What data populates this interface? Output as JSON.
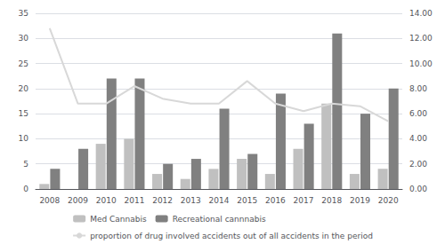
{
  "chart_data": {
    "type": "bar",
    "categories": [
      "2008",
      "2009",
      "2010",
      "2011",
      "2012",
      "2013",
      "2014",
      "2015",
      "2016",
      "2017",
      "2018",
      "2019",
      "2020"
    ],
    "series": [
      {
        "name": "Med Cannabis",
        "type": "bar",
        "color": "#c0c0c0",
        "values": [
          1,
          0,
          9,
          10,
          3,
          2,
          4,
          6,
          3,
          8,
          17,
          3,
          4
        ]
      },
      {
        "name": "Recreational cannnabis",
        "type": "bar",
        "color": "#808080",
        "values": [
          4,
          8,
          22,
          22,
          5,
          6,
          16,
          7,
          19,
          13,
          31,
          15,
          20
        ]
      },
      {
        "name": "proportion of drug involved accidents out of all accidents in the period",
        "type": "line",
        "axis": "y2",
        "color": "#d8d8d8",
        "values": [
          12.8,
          6.8,
          6.8,
          8.2,
          7.2,
          6.8,
          6.8,
          8.6,
          6.8,
          6.2,
          6.8,
          6.6,
          5.4
        ]
      }
    ],
    "ylim": [
      0,
      35
    ],
    "yticks": [
      0,
      5,
      10,
      15,
      20,
      25,
      30,
      35
    ],
    "y2lim": [
      0,
      14
    ],
    "y2ticks": [
      {
        "value": 0,
        "label": "0.00"
      },
      {
        "value": 2,
        "label": "2.00"
      },
      {
        "value": 4,
        "label": "4.00"
      },
      {
        "value": 6,
        "label": "6.00"
      },
      {
        "value": 8,
        "label": "8.00"
      },
      {
        "value": 10,
        "label": "10.00"
      },
      {
        "value": 12,
        "label": "12.00"
      },
      {
        "value": 14,
        "label": "14.00"
      }
    ],
    "grid": true,
    "legend": "bottom"
  }
}
